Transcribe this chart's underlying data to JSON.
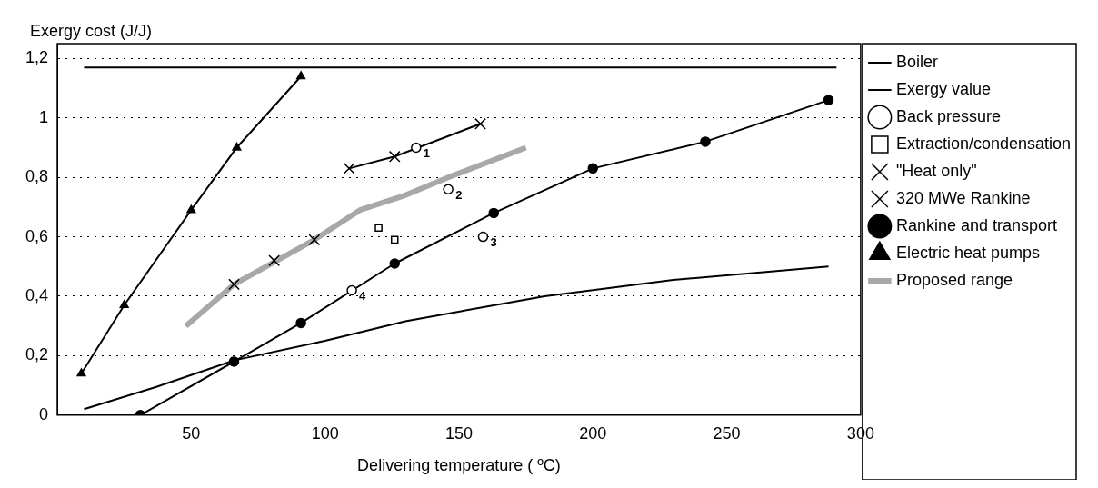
{
  "chart_data": {
    "type": "line",
    "xlabel": "Delivering temperature ( ºC)",
    "ylabel": "Exergy cost (J/J)",
    "xlim": [
      0,
      300
    ],
    "xticks": [
      50,
      100,
      150,
      200,
      250,
      300
    ],
    "ylim": [
      0,
      1.25
    ],
    "yticks": [
      0,
      {
        "value": 0.2,
        "label": "0,2"
      },
      {
        "value": 0.4,
        "label": "0,4"
      },
      {
        "value": 0.6,
        "label": "0,6"
      },
      {
        "value": 0.8,
        "label": "0,8"
      },
      1,
      {
        "value": 1.2,
        "label": "1,2"
      }
    ],
    "grid": "y",
    "legend": "right",
    "series": [
      {
        "name": "Boiler",
        "color": "#000000",
        "marker": "none",
        "x": [
          10,
          37,
          66,
          100,
          130,
          182,
          230,
          288
        ],
        "values": [
          0.02,
          0.095,
          0.184,
          0.25,
          0.316,
          0.4,
          0.455,
          0.5
        ]
      },
      {
        "name": "Exergy value",
        "color": "#000000",
        "marker": "none",
        "x": [
          10,
          291
        ],
        "values": [
          1.17,
          1.17
        ]
      },
      {
        "name": "Back pressure",
        "type": "scatter",
        "color": "#000000",
        "marker": "circle",
        "x": [
          134,
          146,
          159,
          110
        ],
        "values": [
          0.9,
          0.76,
          0.6,
          0.42
        ]
      },
      {
        "name": "Extraction/condensation",
        "type": "scatter",
        "color": "#000000",
        "marker": "square",
        "x": [
          120,
          126
        ],
        "values": [
          0.63,
          0.59
        ]
      },
      {
        "name": "\"Heat only\"",
        "color": "#000000",
        "marker": "cross",
        "x": [
          109,
          126,
          158
        ],
        "values": [
          0.83,
          0.87,
          0.98
        ]
      },
      {
        "name": "320 MWe Rankine",
        "type": "scatter",
        "color": "#000000",
        "marker": "cross",
        "x": [
          66,
          81,
          96
        ],
        "values": [
          0.44,
          0.52,
          0.59
        ]
      },
      {
        "name": "Rankine and transport",
        "color": "#000000",
        "marker": "circle",
        "x": [
          31,
          66,
          91,
          126,
          163,
          200,
          242,
          288
        ],
        "values": [
          0,
          0.18,
          0.31,
          0.51,
          0.68,
          0.83,
          0.92,
          1.06
        ]
      },
      {
        "name": "Electric heat pumps",
        "color": "#000000",
        "marker": "triangle",
        "x": [
          9,
          25,
          50,
          67,
          91
        ],
        "values": [
          0.14,
          0.37,
          0.69,
          0.9,
          1.14
        ]
      },
      {
        "name": "Proposed range",
        "color": "#a8a8a8",
        "marker": "none",
        "x": [
          48,
          66,
          96,
          113,
          130,
          146,
          175
        ],
        "values": [
          0.3,
          0.44,
          0.59,
          0.69,
          0.74,
          0.8,
          0.9
        ]
      }
    ],
    "annotations": [
      {
        "text": "1",
        "x": 134,
        "y": 0.9
      },
      {
        "text": "2",
        "x": 146,
        "y": 0.76
      },
      {
        "text": "3",
        "x": 159,
        "y": 0.6
      },
      {
        "text": "4",
        "x": 110,
        "y": 0.42
      }
    ]
  }
}
